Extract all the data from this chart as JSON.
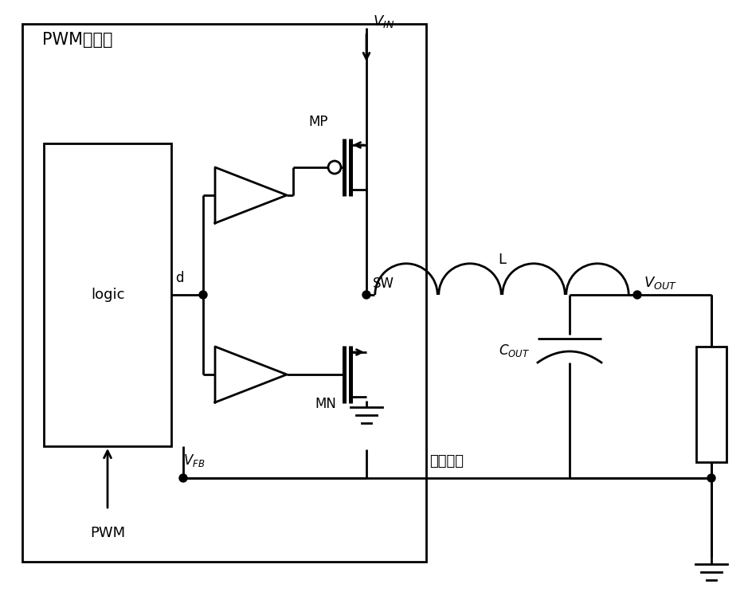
{
  "bg_color": "#ffffff",
  "lw": 2.0,
  "fig_w": 9.39,
  "fig_h": 7.43,
  "dpi": 100,
  "title": "PWM控制器",
  "label_logic": "logic",
  "label_pwm_in": "PWM",
  "label_d": "d",
  "label_MP": "MP",
  "label_MN": "MN",
  "label_SW": "SW",
  "label_L": "L",
  "label_feedback": "反馈电压"
}
